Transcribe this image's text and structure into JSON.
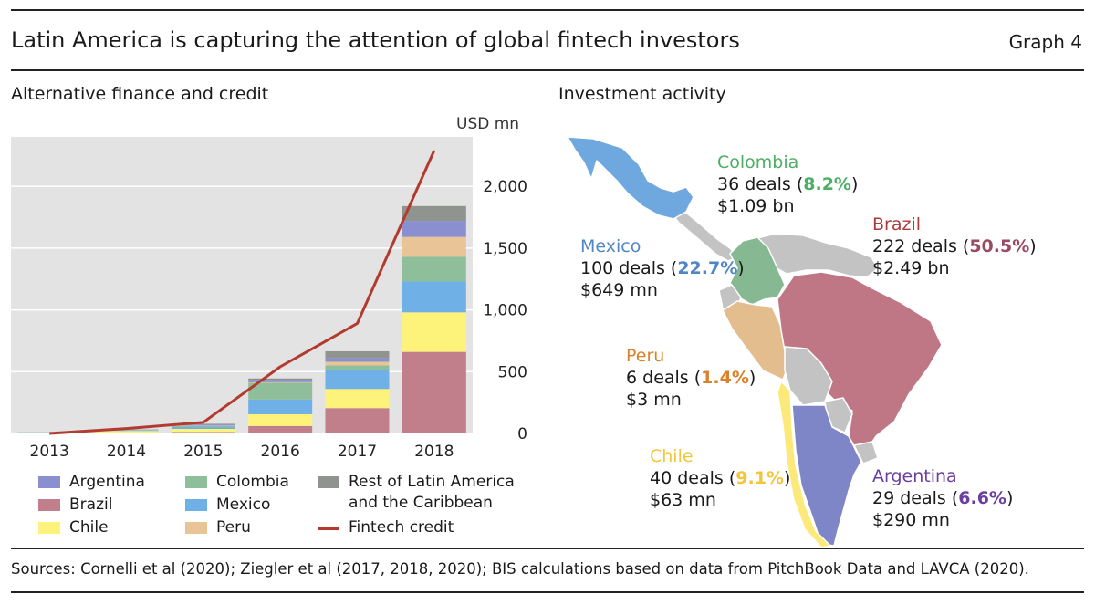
{
  "header": {
    "title": "Latin America is capturing the attention of global fintech investors",
    "graph_label": "Graph 4"
  },
  "left_panel": {
    "subtitle": "Alternative finance and credit",
    "unit": "USD mn"
  },
  "right_panel": {
    "subtitle": "Investment activity"
  },
  "footer": {
    "sources": "Sources: Cornelli et al (2020); Ziegler et al (2017, 2018, 2020); BIS calculations based on data from PitchBook Data and LAVCA (2020)."
  },
  "chart_data": {
    "type": "bar",
    "stacked": true,
    "title": "Alternative finance and credit",
    "ylabel": "USD mn",
    "categories": [
      "2013",
      "2014",
      "2015",
      "2016",
      "2017",
      "2018"
    ],
    "ylim": [
      0,
      2400
    ],
    "yticks": [
      0,
      500,
      1000,
      1500,
      2000
    ],
    "ytick_labels": [
      "0",
      "500",
      "1,000",
      "1,500",
      "2,000"
    ],
    "grid": true,
    "series": [
      {
        "name": "Brazil",
        "color": "#c17f8c",
        "values": [
          2,
          8,
          12,
          60,
          205,
          660
        ]
      },
      {
        "name": "Chile",
        "color": "#fdf27a",
        "values": [
          5,
          12,
          25,
          95,
          155,
          320
        ]
      },
      {
        "name": "Mexico",
        "color": "#6fb0e6",
        "values": [
          1,
          5,
          15,
          120,
          155,
          250
        ]
      },
      {
        "name": "Colombia",
        "color": "#8fbf9a",
        "values": [
          1,
          3,
          8,
          135,
          35,
          200
        ]
      },
      {
        "name": "Peru",
        "color": "#e9c497",
        "values": [
          0,
          1,
          3,
          5,
          30,
          160
        ]
      },
      {
        "name": "Argentina",
        "color": "#8a8fcf",
        "values": [
          1,
          3,
          10,
          20,
          30,
          130
        ]
      },
      {
        "name": "Rest of Latin America and the Caribbean",
        "color": "#8f948f",
        "values": [
          0,
          1,
          5,
          10,
          55,
          120
        ]
      }
    ],
    "line_series": {
      "name": "Fintech credit",
      "color": "#b23a2f",
      "values": [
        0,
        40,
        90,
        540,
        890,
        2290
      ]
    },
    "legend": [
      {
        "name": "Argentina",
        "color": "#8a8fcf",
        "kind": "box"
      },
      {
        "name": "Brazil",
        "color": "#c17f8c",
        "kind": "box"
      },
      {
        "name": "Chile",
        "color": "#fdf27a",
        "kind": "box"
      },
      {
        "name": "Colombia",
        "color": "#8fbf9a",
        "kind": "box"
      },
      {
        "name": "Mexico",
        "color": "#6fb0e6",
        "kind": "box"
      },
      {
        "name": "Peru",
        "color": "#e9c497",
        "kind": "box"
      },
      {
        "name": "Rest of Latin America and the Caribbean",
        "label_line1": "Rest of Latin America",
        "label_line2": "and the Caribbean",
        "color": "#8f948f",
        "kind": "box"
      },
      {
        "name": "Fintech credit",
        "color": "#b23a2f",
        "kind": "line"
      }
    ]
  },
  "map": {
    "countries": {
      "mexico": {
        "name": "Mexico",
        "deals": "100 deals (",
        "share": "22.7%",
        "amount": "$649 mn",
        "color": "#6fa8df",
        "label_color": "#4f86c6"
      },
      "colombia": {
        "name": "Colombia",
        "deals": "36 deals (",
        "share": "8.2%",
        "amount": "$1.09  bn",
        "color": "#86b991",
        "label_color": "#4caf64"
      },
      "brazil": {
        "name": "Brazil",
        "deals": "222 deals (",
        "share": "50.5%",
        "amount": "$2.49 bn",
        "color": "#bf7785",
        "label_color": "#b03a3a",
        "share_color": "#9a4a62"
      },
      "peru": {
        "name": "Peru",
        "deals": "6 deals (",
        "share": "1.4%",
        "amount": "$3 mn",
        "color": "#e3bd8d",
        "label_color": "#d9822b"
      },
      "chile": {
        "name": "Chile",
        "deals": "40 deals (",
        "share": "9.1%",
        "amount": "$63 mn",
        "color": "#fbe97a",
        "label_color": "#f3c63a"
      },
      "argentina": {
        "name": "Argentina",
        "deals": "29 deals (",
        "share": "6.6%",
        "amount": "$290 mn",
        "color": "#7e86c8",
        "label_color": "#6b3fa0"
      }
    },
    "other_color": "#c3c3c3",
    "close_paren": ")"
  }
}
